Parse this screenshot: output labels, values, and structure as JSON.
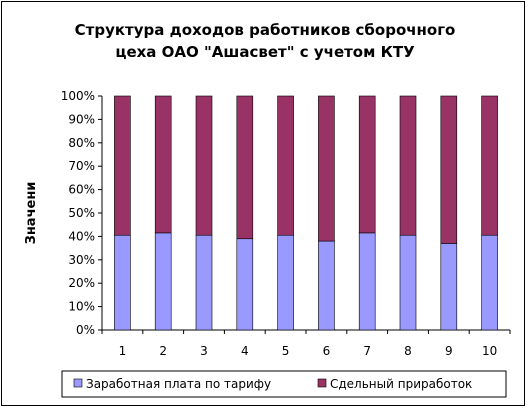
{
  "chart_data": {
    "type": "bar",
    "stacked": "percent",
    "title_lines": [
      "Структура доходов работников сборочного",
      "цеха ОАО \"Ашасвет\" с учетом КТУ"
    ],
    "ylabel": "Значени",
    "xlabel": "",
    "categories": [
      "1",
      "2",
      "3",
      "4",
      "5",
      "6",
      "7",
      "8",
      "9",
      "10"
    ],
    "series": [
      {
        "name": "Заработная плата по тарифу",
        "color": "#9999ff",
        "values": [
          40.5,
          41.5,
          40.5,
          39,
          40.5,
          38,
          41.5,
          40.5,
          37,
          40.5
        ]
      },
      {
        "name": "Сдельный приработок",
        "color": "#993366",
        "values": [
          59.5,
          58.5,
          59.5,
          61,
          59.5,
          62,
          58.5,
          59.5,
          63,
          59.5
        ]
      }
    ],
    "ylim": [
      0,
      100
    ],
    "yticks": [
      "0%",
      "10%",
      "20%",
      "30%",
      "40%",
      "50%",
      "60%",
      "70%",
      "80%",
      "90%",
      "100%"
    ],
    "grid": false,
    "legend": "bottom"
  }
}
